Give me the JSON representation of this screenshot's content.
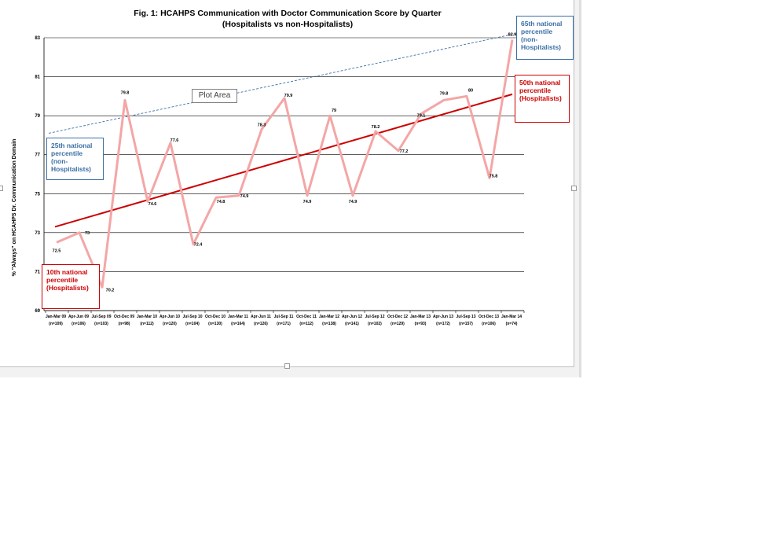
{
  "chart_data": {
    "type": "line",
    "title": "Fig. 1: HCAHPS Communication with Doctor Communication Score by Quarter",
    "subtitle": "(Hospitalists vs non-Hospitalists)",
    "ylabel": "% \"Always\" on HCAHPS Dr. Communication Domain",
    "xlabel": "",
    "ylim": [
      69,
      83
    ],
    "yticks": [
      "83",
      "81",
      "79",
      "77",
      "75",
      "73",
      "71",
      "69"
    ],
    "grid": true,
    "categories": [
      "Jan-Mar 09",
      "Apr-Jun 09",
      "Jul-Sep 09",
      "Oct-Dec 09",
      "Jan-Mar 10",
      "Apr-Jun 10",
      "Jul-Sep 10",
      "Oct-Dec 10",
      "Jan-Mar 11",
      "Apr-Jun 11",
      "Jul-Sep 11",
      "Oct-Dec 11",
      "Jan-Mar 12",
      "Apr-Jun 12",
      "Jul-Sep 12",
      "Oct-Dec 12",
      "Jan-Mar 13",
      "Apr-Jun 13",
      "Jul-Sep 13",
      "Oct-Dec 13",
      "Jan-Mar 14"
    ],
    "n_labels": [
      "(n=109)",
      "(n=106)",
      "(n=103)",
      "(n=98)",
      "(n=112)",
      "(n=120)",
      "(n=104)",
      "(n=130)",
      "(n=164)",
      "(n=126)",
      "(n=171)",
      "(n=112)",
      "(n=138)",
      "(n=141)",
      "(n=102)",
      "(n=129)",
      "(n=93)",
      "(n=172)",
      "(n=157)",
      "(n=106)",
      "(n=74)"
    ],
    "series": [
      {
        "color": "#f4a6a6",
        "values": [
          72.5,
          73,
          70.2,
          79.8,
          74.6,
          77.6,
          72.4,
          74.8,
          74.9,
          78.3,
          79.9,
          74.9,
          79,
          74.9,
          78.2,
          77.2,
          79.1,
          79.8,
          80,
          75.8,
          82.9
        ],
        "data_labels": [
          "72.5",
          "73",
          "70.2",
          "79.8",
          "74.6",
          "77.6",
          "72.4",
          "74.8",
          "74.9",
          "78.3",
          "79.9",
          "74.9",
          "79",
          "74.9",
          "78.2",
          "77.2",
          "79.1",
          "79.8",
          "80",
          "75.8",
          "82.9"
        ]
      }
    ],
    "reference_lines": [
      {
        "color": "#cc0000",
        "style": "solid",
        "start": 73.3,
        "end": 80.1
      },
      {
        "color": "#3b6fa6",
        "style": "dashed",
        "start": 78.1,
        "end": 83.2
      }
    ]
  },
  "callouts": {
    "p65": [
      "65th national",
      "percentile",
      "(non-",
      "Hospitalists)"
    ],
    "p50": [
      "50th national",
      "percentile",
      "(Hospitalists)"
    ],
    "p25": [
      "25th national",
      "percentile",
      "(non-",
      "Hospitalists)"
    ],
    "p10": [
      "10th national",
      "percentile",
      "(Hospitalists)"
    ]
  },
  "tooltip": "Plot Area",
  "colors": {
    "series": "#f4a6a6",
    "p50": "#cc0000",
    "p65": "#3b6fa6",
    "grid": "#000000"
  }
}
